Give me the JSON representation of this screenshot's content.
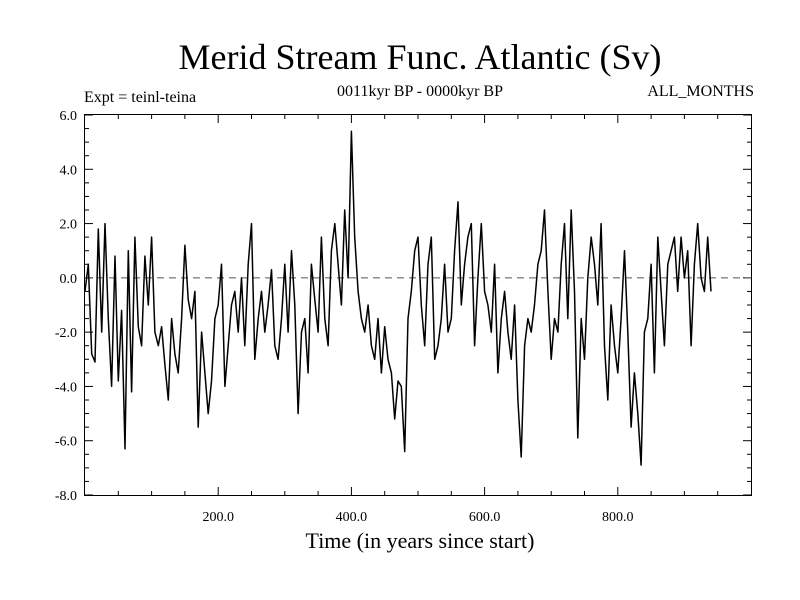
{
  "chart_data": {
    "type": "line",
    "title": "Merid Stream Func. Atlantic (Sv)",
    "subtitle_left": "Expt = teinl-teina",
    "subtitle_center": "0011kyr BP - 0000kyr BP",
    "subtitle_right": "ALL_MONTHS",
    "xlabel": "Time (in years since start)",
    "ylabel": "",
    "xlim": [
      0,
      1000
    ],
    "ylim": [
      -8,
      6
    ],
    "x_ticks": [
      200,
      400,
      600,
      800
    ],
    "x_tick_labels": [
      "200.0",
      "400.0",
      "600.0",
      "800.0"
    ],
    "y_ticks": [
      6,
      4,
      2,
      0,
      -2,
      -4,
      -6,
      -8
    ],
    "y_tick_labels": [
      "6.0",
      "4.0",
      "2.0",
      "0.0",
      "-2.0",
      "-4.0",
      "-6.0",
      "-8.0"
    ],
    "reference_line": 0,
    "series": [
      {
        "name": "Merid Stream Func. Atlantic",
        "color": "#000000",
        "x_start": 0,
        "x_step": 5,
        "values": [
          -0.5,
          0.5,
          -2.8,
          -3.1,
          1.8,
          -2.0,
          2.0,
          -1.5,
          -4.0,
          0.8,
          -3.8,
          -1.2,
          -6.3,
          1.0,
          -4.2,
          1.5,
          -1.8,
          -2.5,
          0.8,
          -1.0,
          1.5,
          -2.0,
          -2.5,
          -1.8,
          -3.2,
          -4.5,
          -1.5,
          -2.8,
          -3.5,
          -1.5,
          1.2,
          -0.8,
          -1.5,
          -0.5,
          -5.5,
          -2.0,
          -3.5,
          -5.0,
          -3.8,
          -1.5,
          -1.0,
          0.5,
          -4.0,
          -2.5,
          -1.0,
          -0.5,
          -2.0,
          0.0,
          -2.5,
          0.5,
          2.0,
          -3.0,
          -1.5,
          -0.5,
          -2.0,
          -1.0,
          0.3,
          -2.5,
          -3.0,
          -1.5,
          0.5,
          -2.0,
          1.0,
          -1.0,
          -5.0,
          -2.0,
          -1.5,
          -3.5,
          0.5,
          -0.8,
          -2.0,
          1.5,
          -1.5,
          -2.5,
          1.0,
          2.0,
          0.5,
          -1.0,
          2.5,
          0.0,
          5.4,
          1.5,
          -0.5,
          -1.5,
          -2.0,
          -1.0,
          -2.5,
          -3.0,
          -1.5,
          -3.5,
          -1.8,
          -3.0,
          -3.5,
          -5.2,
          -3.8,
          -4.0,
          -6.4,
          -1.5,
          -0.5,
          1.0,
          1.5,
          -1.0,
          -2.5,
          0.5,
          1.5,
          -3.0,
          -2.5,
          -1.5,
          0.5,
          -2.0,
          -1.5,
          1.0,
          2.8,
          -1.0,
          0.5,
          1.5,
          2.0,
          -2.5,
          0.0,
          2.0,
          -0.5,
          -1.0,
          -2.0,
          0.5,
          -3.5,
          -1.5,
          -0.5,
          -2.0,
          -3.0,
          -1.0,
          -4.5,
          -6.6,
          -2.5,
          -1.5,
          -2.0,
          -1.0,
          0.5,
          1.0,
          2.5,
          -0.5,
          -3.0,
          -1.5,
          -2.0,
          0.5,
          2.0,
          -1.5,
          2.5,
          -0.5,
          -5.9,
          -1.5,
          -3.0,
          0.0,
          1.5,
          0.5,
          -1.0,
          2.0,
          -2.5,
          -4.5,
          -1.0,
          -2.5,
          -3.5,
          -1.5,
          1.0,
          -2.0,
          -5.5,
          -3.5,
          -5.0,
          -6.9,
          -2.0,
          -1.5,
          0.5,
          -3.5,
          1.5,
          -0.5,
          -2.5,
          0.5,
          1.0,
          1.5,
          -0.5,
          1.5,
          0.0,
          1.0,
          -2.5,
          0.5,
          2.0,
          0.0,
          -0.5,
          1.5,
          -0.5
        ]
      }
    ]
  }
}
